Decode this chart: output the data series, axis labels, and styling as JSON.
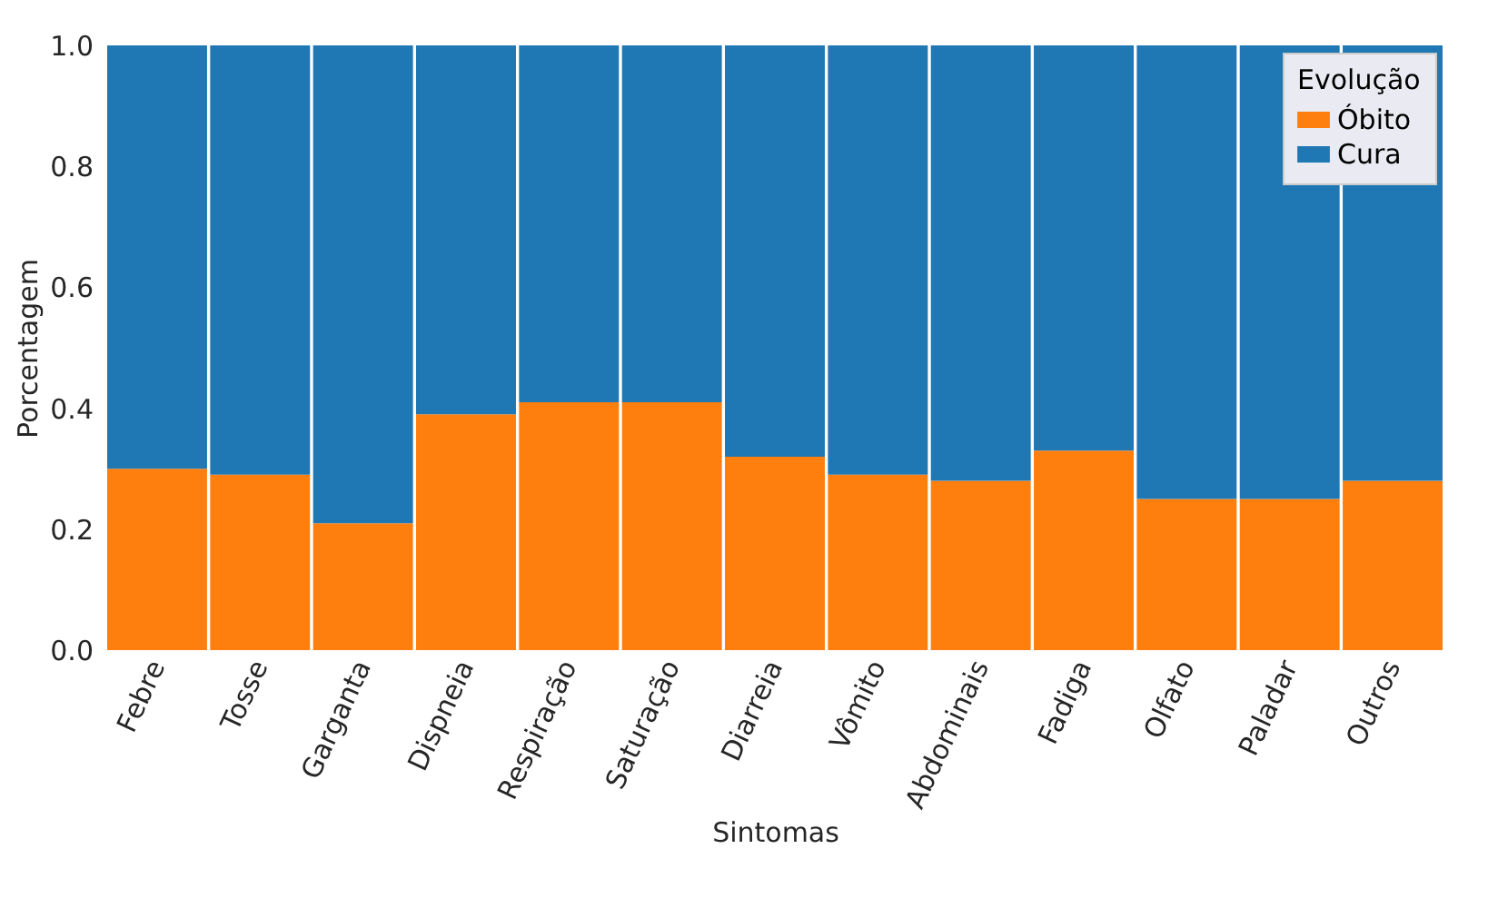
{
  "chart_data": {
    "type": "bar",
    "stacked": true,
    "xlabel": "Sintomas",
    "ylabel": "Porcentagem",
    "legend_title": "Evolução",
    "legend": "top right",
    "grid": false,
    "categories": [
      "Febre",
      "Tosse",
      "Garganta",
      "Dispneia",
      "Respiração",
      "Saturação",
      "Diarreia",
      "Vômito",
      "Abdominais",
      "Fadiga",
      "Olfato",
      "Paladar",
      "Outros"
    ],
    "series": [
      {
        "name": "Óbito",
        "color": "#ff7f0e",
        "values": [
          0.3,
          0.29,
          0.21,
          0.39,
          0.41,
          0.41,
          0.32,
          0.29,
          0.28,
          0.33,
          0.25,
          0.25,
          0.28
        ]
      },
      {
        "name": "Cura",
        "color": "#1f77b4",
        "values": [
          0.7,
          0.71,
          0.79,
          0.61,
          0.59,
          0.59,
          0.68,
          0.71,
          0.72,
          0.67,
          0.75,
          0.75,
          0.72
        ]
      }
    ],
    "ylim": [
      0,
      1
    ],
    "yticks": [
      {
        "value": 0,
        "label": "0.0"
      },
      0.2,
      0.4,
      0.6,
      0.8,
      {
        "value": 1,
        "label": "1.0"
      }
    ]
  }
}
